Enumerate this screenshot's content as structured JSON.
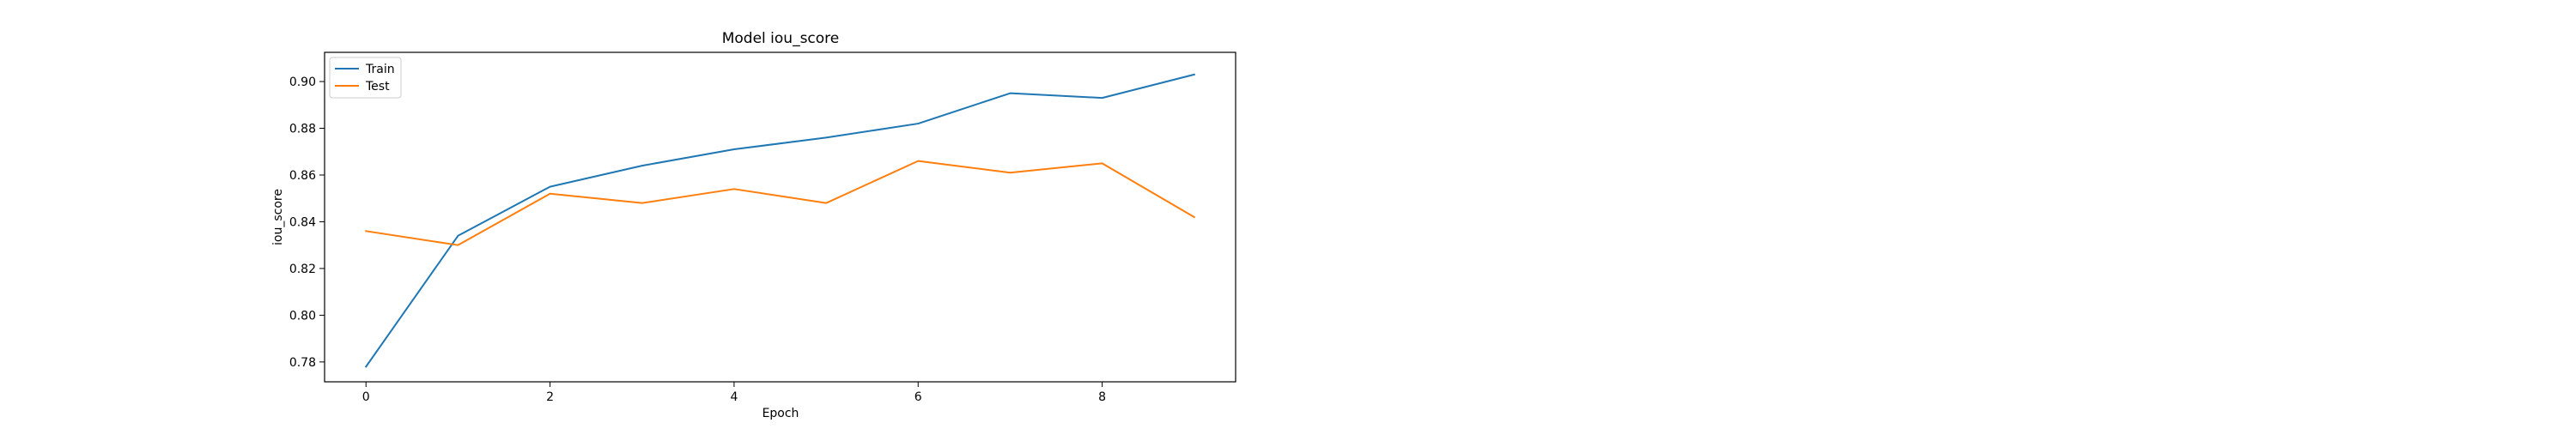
{
  "chart_data": {
    "type": "line",
    "title": "Model iou_score",
    "xlabel": "Epoch",
    "ylabel": "iou_score",
    "x": [
      0,
      1,
      2,
      3,
      4,
      5,
      6,
      7,
      8,
      9
    ],
    "xlim": [
      -0.45,
      9.45
    ],
    "ylim": [
      0.7715,
      0.9125
    ],
    "x_ticks": [
      0,
      2,
      4,
      6,
      8
    ],
    "y_ticks": [
      0.78,
      0.8,
      0.82,
      0.84,
      0.86,
      0.88,
      0.9
    ],
    "y_tick_labels": [
      "0.78",
      "0.80",
      "0.82",
      "0.84",
      "0.86",
      "0.88",
      "0.90"
    ],
    "grid": false,
    "legend_position": "top-left",
    "series": [
      {
        "name": "Train",
        "color": "#1f77b4",
        "values": [
          0.778,
          0.834,
          0.855,
          0.864,
          0.871,
          0.876,
          0.882,
          0.895,
          0.893,
          0.903
        ]
      },
      {
        "name": "Test",
        "color": "#ff7f0e",
        "values": [
          0.836,
          0.83,
          0.852,
          0.848,
          0.854,
          0.848,
          0.866,
          0.861,
          0.865,
          0.842
        ]
      }
    ]
  }
}
